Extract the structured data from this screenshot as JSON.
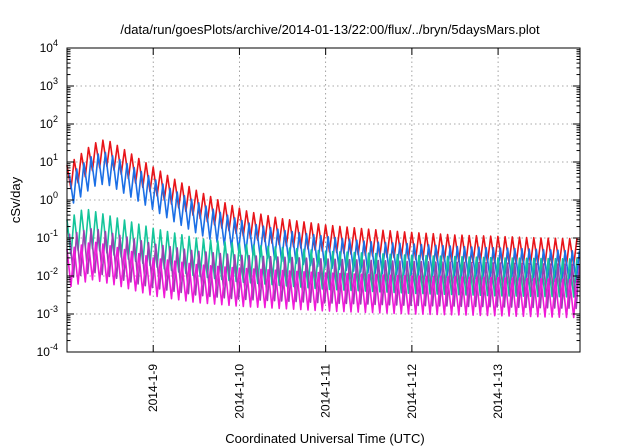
{
  "chart_data": {
    "type": "line",
    "title": "/data/run/goesPlots/archive/2014-01-13/22:00/flux/../bryn/5daysMars.plot",
    "xlabel": "Coordinated Universal Time (UTC)",
    "ylabel": "cSv/day",
    "yscale": "log",
    "ylim": [
      0.0001,
      10000
    ],
    "xlim_days": [
      0,
      5.95
    ],
    "grid": true,
    "x_ticks": [
      {
        "day": 1,
        "label": "2014-1-9"
      },
      {
        "day": 2,
        "label": "2014-1-10"
      },
      {
        "day": 3,
        "label": "2014-1-11"
      },
      {
        "day": 4,
        "label": "2014-1-12"
      },
      {
        "day": 5,
        "label": "2014-1-13"
      }
    ],
    "y_ticks": [
      {
        "value": 0.0001,
        "base": "10",
        "exp": "-4"
      },
      {
        "value": 0.001,
        "base": "10",
        "exp": "-3"
      },
      {
        "value": 0.01,
        "base": "10",
        "exp": "-2"
      },
      {
        "value": 0.1,
        "base": "10",
        "exp": "-1"
      },
      {
        "value": 1,
        "base": "10",
        "exp": "0"
      },
      {
        "value": 10,
        "base": "10",
        "exp": "1"
      },
      {
        "value": 100,
        "base": "10",
        "exp": "2"
      },
      {
        "value": 1000,
        "base": "10",
        "exp": "3"
      },
      {
        "value": 10000,
        "base": "10",
        "exp": "4"
      }
    ],
    "sawtooth_period_days": 0.0833,
    "series": [
      {
        "color": "#e8141a",
        "envelope_points": [
          [
            0,
            8
          ],
          [
            0.3,
            30
          ],
          [
            0.45,
            40
          ],
          [
            0.6,
            26
          ],
          [
            0.9,
            10
          ],
          [
            1.2,
            4
          ],
          [
            1.5,
            1.8
          ],
          [
            1.8,
            0.9
          ],
          [
            2.1,
            0.5
          ],
          [
            2.5,
            0.32
          ],
          [
            3,
            0.22
          ],
          [
            3.5,
            0.17
          ],
          [
            4,
            0.14
          ],
          [
            4.5,
            0.12
          ],
          [
            5,
            0.11
          ],
          [
            5.5,
            0.1
          ],
          [
            5.95,
            0.095
          ]
        ],
        "trough_factor": 0.2
      },
      {
        "color": "#1b6fe6",
        "envelope_points": [
          [
            0,
            4
          ],
          [
            0.3,
            15
          ],
          [
            0.45,
            18
          ],
          [
            0.6,
            12
          ],
          [
            0.9,
            5
          ],
          [
            1.2,
            2
          ],
          [
            1.5,
            0.9
          ],
          [
            1.8,
            0.45
          ],
          [
            2.1,
            0.25
          ],
          [
            2.5,
            0.16
          ],
          [
            3,
            0.11
          ],
          [
            3.5,
            0.08
          ],
          [
            4,
            0.07
          ],
          [
            4.5,
            0.06
          ],
          [
            5,
            0.055
          ],
          [
            5.5,
            0.05
          ],
          [
            5.95,
            0.045
          ]
        ],
        "trough_factor": 0.15
      },
      {
        "color": "#14c59a",
        "envelope_points": [
          [
            0,
            0.3
          ],
          [
            0.2,
            0.6
          ],
          [
            0.5,
            0.38
          ],
          [
            1,
            0.18
          ],
          [
            1.5,
            0.1
          ],
          [
            2,
            0.07
          ],
          [
            3,
            0.045
          ],
          [
            4,
            0.035
          ],
          [
            5,
            0.03
          ],
          [
            5.95,
            0.028
          ]
        ],
        "trough_factor": 0.1
      },
      {
        "color": "#9b3fb0",
        "envelope_points": [
          [
            0,
            0.12
          ],
          [
            0.3,
            0.18
          ],
          [
            0.6,
            0.12
          ],
          [
            1,
            0.07
          ],
          [
            1.5,
            0.045
          ],
          [
            2,
            0.035
          ],
          [
            3,
            0.028
          ],
          [
            4,
            0.024
          ],
          [
            5,
            0.022
          ],
          [
            5.95,
            0.02
          ]
        ],
        "trough_factor": 0.07
      },
      {
        "color": "#f019d8",
        "envelope_points": [
          [
            0,
            0.05
          ],
          [
            0.3,
            0.08
          ],
          [
            0.6,
            0.055
          ],
          [
            1,
            0.03
          ],
          [
            1.5,
            0.02
          ],
          [
            2,
            0.016
          ],
          [
            3,
            0.012
          ],
          [
            4,
            0.01
          ],
          [
            5,
            0.009
          ],
          [
            5.95,
            0.008
          ]
        ],
        "trough_factor": 0.1
      }
    ]
  }
}
